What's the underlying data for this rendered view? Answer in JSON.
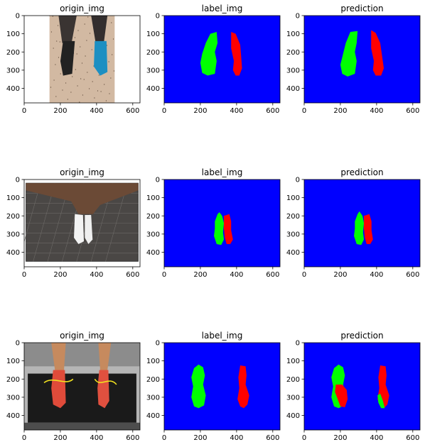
{
  "figure": {
    "rows": [
      {
        "panels": [
          {
            "title": "origin_img",
            "kind": "photo",
            "scene": "sneakers-floor"
          },
          {
            "title": "label_img",
            "kind": "mask",
            "mask": "labelA"
          },
          {
            "title": "prediction",
            "kind": "mask",
            "mask": "predA"
          }
        ]
      },
      {
        "panels": [
          {
            "title": "origin_img",
            "kind": "photo",
            "scene": "white-shoes-tiles"
          },
          {
            "title": "label_img",
            "kind": "mask",
            "mask": "labelB"
          },
          {
            "title": "prediction",
            "kind": "mask",
            "mask": "predB"
          }
        ]
      },
      {
        "panels": [
          {
            "title": "origin_img",
            "kind": "photo",
            "scene": "running-shoes-gym"
          },
          {
            "title": "label_img",
            "kind": "mask",
            "mask": "labelC"
          },
          {
            "title": "prediction",
            "kind": "mask",
            "mask": "predC"
          }
        ]
      }
    ],
    "xticks": [
      "0",
      "200",
      "400",
      "600"
    ],
    "yticks": [
      "0",
      "100",
      "200",
      "300",
      "400"
    ],
    "colors": {
      "background_class": "#0000ff",
      "left_shoe_class": "#00ff00",
      "right_shoe_class": "#ff0000"
    }
  }
}
